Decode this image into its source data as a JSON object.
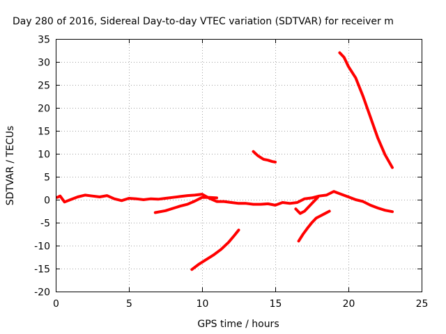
{
  "chart_data": {
    "type": "line",
    "title": "Day 280 of 2016, Sidereal Day-to-day VTEC variation (SDTVAR) for receiver m",
    "xlabel": "GPS time / hours",
    "ylabel": "SDTVAR / TECUs",
    "xlim": [
      0,
      25
    ],
    "ylim": [
      -20,
      35
    ],
    "xticks": [
      "0",
      "5",
      "10",
      "15",
      "20",
      "25"
    ],
    "yticks": [
      "-20",
      "-15",
      "-10",
      "-5",
      "0",
      "5",
      "10",
      "15",
      "20",
      "25",
      "30",
      "35"
    ],
    "grid": true,
    "series_color": "#ff0000",
    "series": [
      {
        "x": [
          0.1,
          0.3,
          0.6,
          1.0,
          1.5,
          2.0,
          2.5,
          3.0,
          3.5,
          4.0,
          4.5,
          5.0,
          5.5,
          6.0,
          6.5,
          7.0,
          7.5,
          8.0,
          8.5,
          9.0,
          9.5,
          10.0,
          10.5,
          11.0,
          11.5,
          12.0,
          12.5,
          13.0,
          13.5,
          14.0,
          14.5,
          15.0,
          15.5,
          16.0,
          16.5,
          17.0,
          17.5,
          18.0,
          18.5,
          19.0,
          19.5,
          20.0,
          20.5,
          21.0,
          21.5,
          22.0,
          22.5,
          23.0
        ],
        "y": [
          0.5,
          0.8,
          -0.5,
          0.0,
          0.6,
          1.0,
          0.8,
          0.6,
          0.9,
          0.2,
          -0.2,
          0.3,
          0.2,
          0.0,
          0.2,
          0.1,
          0.3,
          0.5,
          0.7,
          0.9,
          1.0,
          1.2,
          0.3,
          -0.4,
          -0.4,
          -0.6,
          -0.8,
          -0.8,
          -1.0,
          -1.0,
          -0.9,
          -1.2,
          -0.6,
          -0.8,
          -0.6,
          0.2,
          0.4,
          0.8,
          1.0,
          1.8,
          1.2,
          0.6,
          0.0,
          -0.4,
          -1.2,
          -1.8,
          -2.3,
          -2.6
        ]
      },
      {
        "x": [
          6.8,
          7.5,
          8.0,
          8.5,
          9.0,
          9.5,
          10.0,
          10.5,
          11.0
        ],
        "y": [
          -2.8,
          -2.4,
          -1.9,
          -1.4,
          -1.0,
          -0.3,
          0.5,
          0.5,
          0.4
        ]
      },
      {
        "x": [
          9.3,
          9.8,
          10.3,
          10.8,
          11.3,
          11.8,
          12.2,
          12.5
        ],
        "y": [
          -15.2,
          -14.0,
          -13.0,
          -12.0,
          -10.8,
          -9.3,
          -7.8,
          -6.6
        ]
      },
      {
        "x": [
          13.5,
          13.8,
          14.0,
          14.2,
          14.5,
          14.8,
          15.0
        ],
        "y": [
          10.5,
          9.6,
          9.2,
          8.8,
          8.6,
          8.3,
          8.2
        ]
      },
      {
        "x": [
          16.4,
          16.7,
          17.0,
          17.3,
          17.6,
          17.9
        ],
        "y": [
          -2.0,
          -3.0,
          -2.5,
          -1.5,
          -0.5,
          0.5
        ]
      },
      {
        "x": [
          16.6,
          16.9,
          17.2,
          17.5,
          17.8,
          18.1,
          18.4,
          18.7
        ],
        "y": [
          -9.0,
          -7.5,
          -6.2,
          -5.0,
          -4.0,
          -3.5,
          -3.0,
          -2.5
        ]
      },
      {
        "x": [
          19.4,
          19.7,
          20.0,
          20.5,
          21.0,
          21.5,
          22.0,
          22.5,
          23.0
        ],
        "y": [
          32.0,
          31.0,
          29.0,
          26.5,
          22.5,
          18.0,
          13.5,
          9.8,
          7.0
        ]
      }
    ]
  }
}
